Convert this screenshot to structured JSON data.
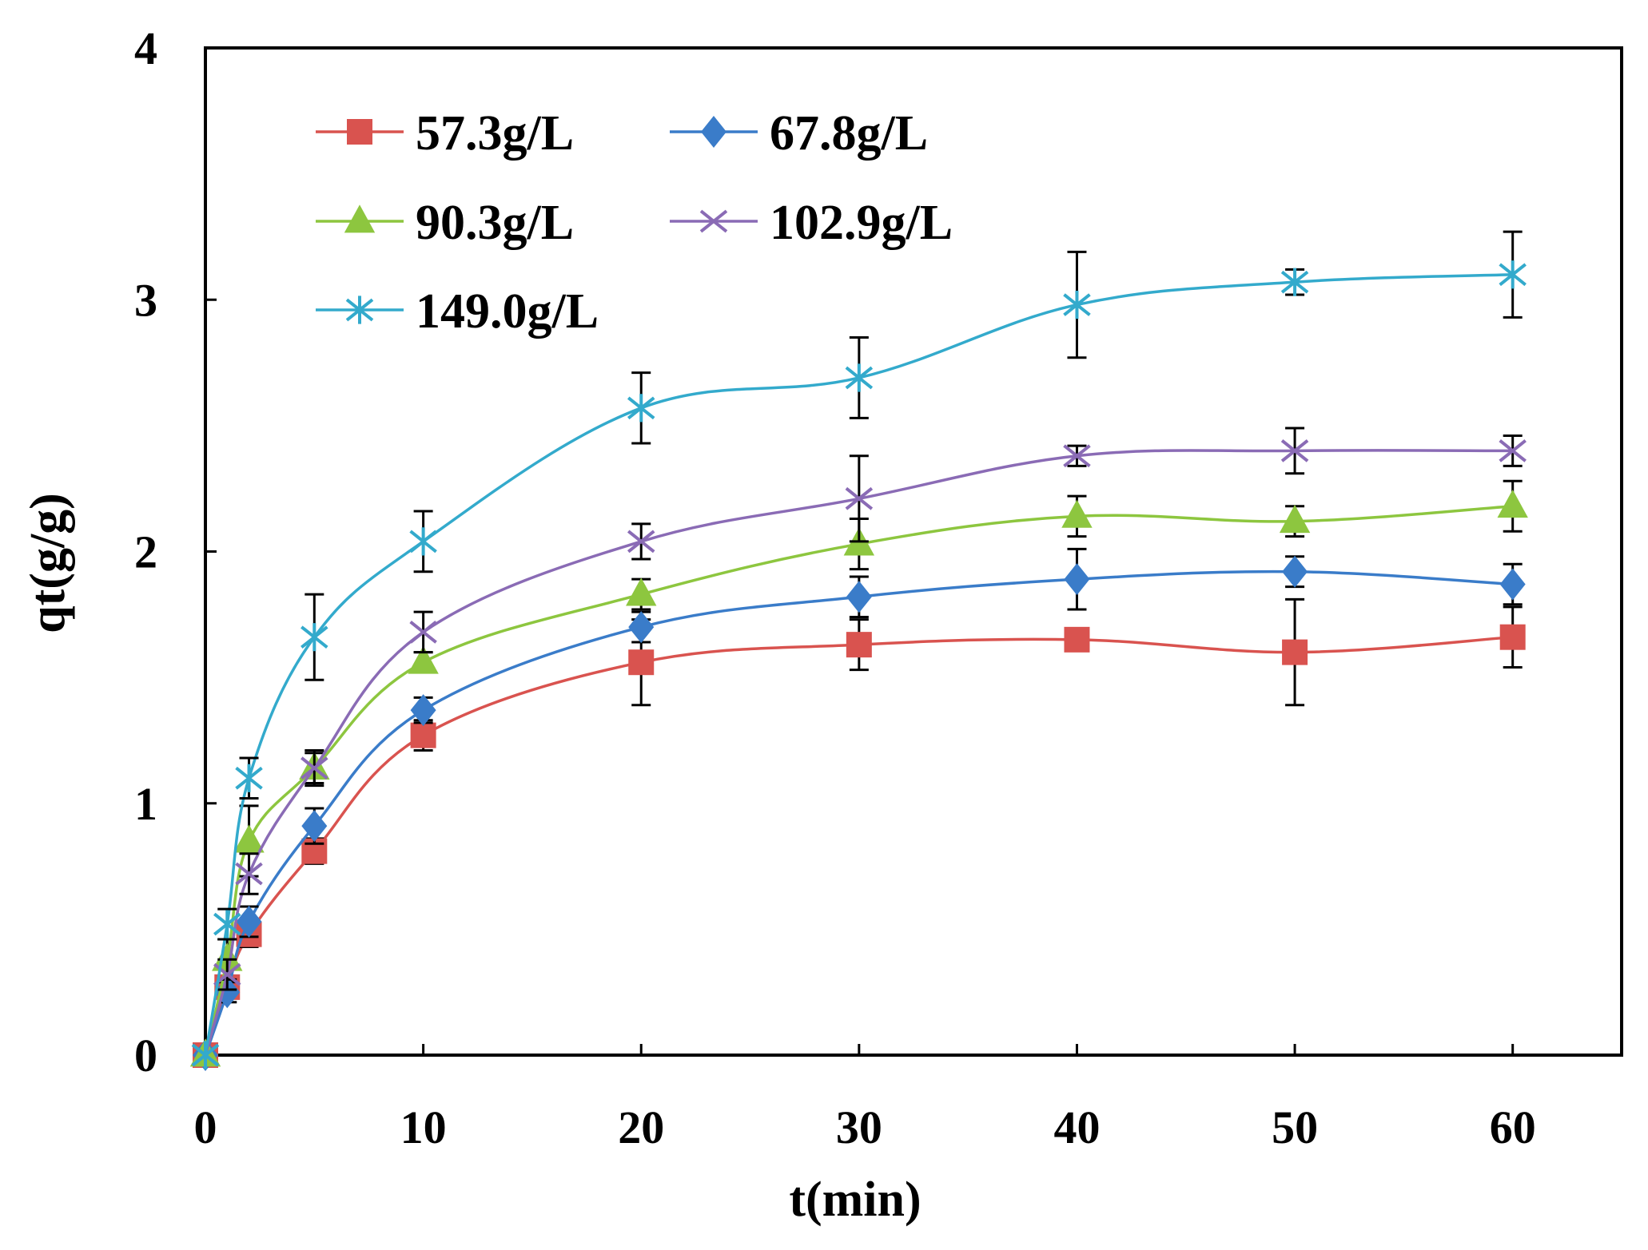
{
  "chart_data": {
    "type": "line",
    "title": "",
    "xlabel": "t(min)",
    "ylabel": "qt(g/g)",
    "xlim": [
      0,
      65
    ],
    "ylim": [
      0,
      4
    ],
    "x_ticks": [
      0,
      10,
      20,
      30,
      40,
      50,
      60
    ],
    "y_ticks": [
      0,
      1,
      2,
      3,
      4
    ],
    "grid": false,
    "legend_position": "top-left",
    "x": [
      0,
      1,
      2,
      5,
      10,
      20,
      30,
      40,
      50,
      60
    ],
    "series": [
      {
        "name": "57.3g/L",
        "color": "#d9534f",
        "marker": "square",
        "values": [
          0,
          0.27,
          0.48,
          0.81,
          1.27,
          1.56,
          1.63,
          1.65,
          1.6,
          1.66
        ],
        "errors": [
          0,
          0.04,
          0.05,
          0.05,
          0.06,
          0.17,
          0.1,
          0.04,
          0.21,
          0.12
        ]
      },
      {
        "name": "67.8g/L",
        "color": "#3a7cc9",
        "marker": "diamond",
        "values": [
          0,
          0.25,
          0.53,
          0.91,
          1.37,
          1.7,
          1.82,
          1.89,
          1.92,
          1.87
        ],
        "errors": [
          0,
          0.04,
          0.06,
          0.07,
          0.05,
          0.06,
          0.08,
          0.12,
          0.06,
          0.08
        ]
      },
      {
        "name": "90.3g/L",
        "color": "#8dc63f",
        "marker": "triangle",
        "values": [
          0,
          0.38,
          0.85,
          1.14,
          1.56,
          1.83,
          2.03,
          2.14,
          2.12,
          2.18
        ],
        "errors": [
          0,
          0.08,
          0.14,
          0.06,
          0.04,
          0.06,
          0.1,
          0.08,
          0.06,
          0.1
        ]
      },
      {
        "name": "102.9g/L",
        "color": "#8a6bb5",
        "marker": "x",
        "values": [
          0,
          0.32,
          0.72,
          1.14,
          1.68,
          2.04,
          2.21,
          2.38,
          2.4,
          2.4
        ],
        "errors": [
          0,
          0.06,
          0.08,
          0.07,
          0.08,
          0.07,
          0.17,
          0.04,
          0.09,
          0.06
        ]
      },
      {
        "name": "149.0g/L",
        "color": "#33aacc",
        "marker": "star",
        "values": [
          0,
          0.52,
          1.1,
          1.66,
          2.04,
          2.57,
          2.69,
          2.98,
          3.07,
          3.1
        ],
        "errors": [
          0,
          0.06,
          0.08,
          0.17,
          0.12,
          0.14,
          0.16,
          0.21,
          0.05,
          0.17
        ]
      }
    ]
  }
}
